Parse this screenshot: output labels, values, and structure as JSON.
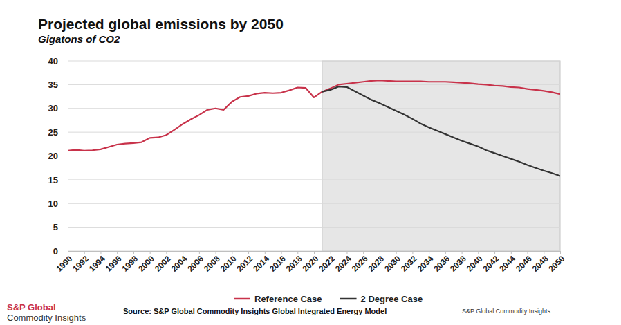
{
  "chart_data": {
    "type": "line",
    "title": "Projected global emissions by 2050",
    "subtitle": "Gigatons of CO2",
    "x": [
      1990,
      1991,
      1992,
      1993,
      1994,
      1995,
      1996,
      1997,
      1998,
      1999,
      2000,
      2001,
      2002,
      2003,
      2004,
      2005,
      2006,
      2007,
      2008,
      2009,
      2010,
      2011,
      2012,
      2013,
      2014,
      2015,
      2016,
      2017,
      2018,
      2019,
      2020,
      2021,
      2022,
      2023,
      2024,
      2025,
      2026,
      2027,
      2028,
      2029,
      2030,
      2031,
      2032,
      2033,
      2034,
      2035,
      2036,
      2037,
      2038,
      2039,
      2040,
      2041,
      2042,
      2043,
      2044,
      2045,
      2046,
      2047,
      2048,
      2049,
      2050
    ],
    "series": [
      {
        "name": "Reference Case",
        "color": "#c8324a",
        "values": [
          21.1,
          21.3,
          21.1,
          21.2,
          21.4,
          21.9,
          22.4,
          22.6,
          22.7,
          22.9,
          23.8,
          23.9,
          24.4,
          25.5,
          26.7,
          27.7,
          28.6,
          29.7,
          30.0,
          29.7,
          31.4,
          32.4,
          32.6,
          33.1,
          33.3,
          33.2,
          33.3,
          33.8,
          34.4,
          34.3,
          32.3,
          33.5,
          34.2,
          35.0,
          35.2,
          35.4,
          35.6,
          35.8,
          35.9,
          35.8,
          35.7,
          35.7,
          35.7,
          35.7,
          35.6,
          35.6,
          35.6,
          35.5,
          35.4,
          35.3,
          35.1,
          35.0,
          34.8,
          34.7,
          34.5,
          34.4,
          34.1,
          33.9,
          33.7,
          33.4,
          33.0
        ]
      },
      {
        "name": "2 Degree Case",
        "color": "#333333",
        "values": [
          null,
          null,
          null,
          null,
          null,
          null,
          null,
          null,
          null,
          null,
          null,
          null,
          null,
          null,
          null,
          null,
          null,
          null,
          null,
          null,
          null,
          null,
          null,
          null,
          null,
          null,
          null,
          null,
          null,
          null,
          null,
          33.5,
          33.9,
          34.6,
          34.5,
          33.6,
          32.7,
          31.8,
          31.1,
          30.3,
          29.5,
          28.7,
          27.8,
          26.8,
          26.0,
          25.3,
          24.6,
          23.9,
          23.2,
          22.6,
          22.0,
          21.2,
          20.6,
          20.0,
          19.4,
          18.8,
          18.1,
          17.5,
          16.9,
          16.4,
          15.8
        ]
      }
    ],
    "xlim": [
      1990,
      2050
    ],
    "xticks": [
      1990,
      1992,
      1994,
      1996,
      1998,
      2000,
      2002,
      2004,
      2006,
      2008,
      2010,
      2012,
      2014,
      2016,
      2018,
      2020,
      2022,
      2024,
      2026,
      2028,
      2030,
      2032,
      2034,
      2036,
      2038,
      2040,
      2042,
      2044,
      2046,
      2048,
      2050
    ],
    "ylim": [
      0,
      40
    ],
    "yticks": [
      0,
      5,
      10,
      15,
      20,
      25,
      30,
      35,
      40
    ],
    "grid": true,
    "legend": "bottom",
    "projection_range": [
      2021,
      2050
    ],
    "source": "Source: S&P Global Commodity Insights Global Integrated Energy Model",
    "logo": [
      "S&P Global",
      "Commodity Insights"
    ],
    "footer_right": "S&P Global Commodity Insights"
  }
}
